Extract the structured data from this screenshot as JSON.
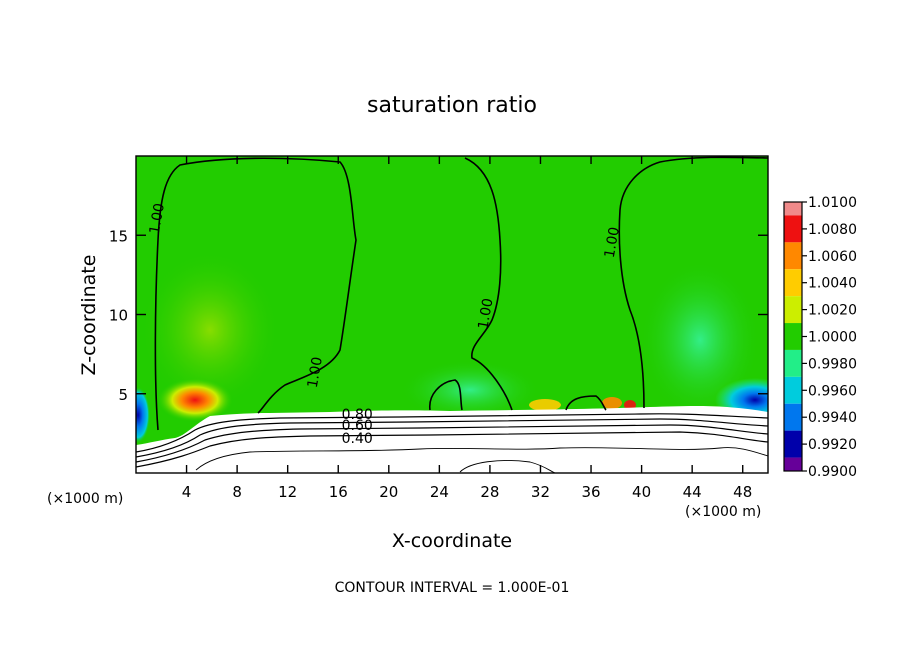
{
  "chart_data": {
    "type": "heatmap",
    "title": "saturation ratio",
    "xlabel": "X-coordinate",
    "ylabel": "Z-coordinate",
    "x_unit_left": "(×1000 m)",
    "x_unit_right": "(×1000 m)",
    "footer": "CONTOUR INTERVAL = 1.000E-01",
    "xlim": [
      0,
      50
    ],
    "ylim": [
      0,
      20
    ],
    "x_ticks": [
      4,
      8,
      12,
      16,
      20,
      24,
      28,
      32,
      36,
      40,
      44,
      48
    ],
    "y_ticks": [
      5,
      10,
      15
    ],
    "colorbar": {
      "ticks": [
        "1.0100",
        "1.0080",
        "1.0060",
        "1.0040",
        "1.0020",
        "1.0000",
        "0.9980",
        "0.9960",
        "0.9940",
        "0.9920",
        "0.9900"
      ],
      "colors": [
        "#f08a8a",
        "#ee1111",
        "#ff8800",
        "#ffcc00",
        "#ccee00",
        "#22cc00",
        "#22ee88",
        "#00ccdd",
        "#0077ee",
        "#0000aa",
        "#660099"
      ]
    },
    "contour_labels": [
      {
        "text": "1.00",
        "x": 2.0,
        "y": 16.0
      },
      {
        "text": "1.00",
        "x": 14.5,
        "y": 6.3
      },
      {
        "text": "1.00",
        "x": 28.0,
        "y": 10.0
      },
      {
        "text": "1.00",
        "x": 38.0,
        "y": 14.5
      },
      {
        "text": "0.80",
        "x": 17.5,
        "y": 3.4
      },
      {
        "text": "0.60",
        "x": 17.5,
        "y": 2.7
      },
      {
        "text": "0.40",
        "x": 17.5,
        "y": 1.9
      }
    ]
  }
}
